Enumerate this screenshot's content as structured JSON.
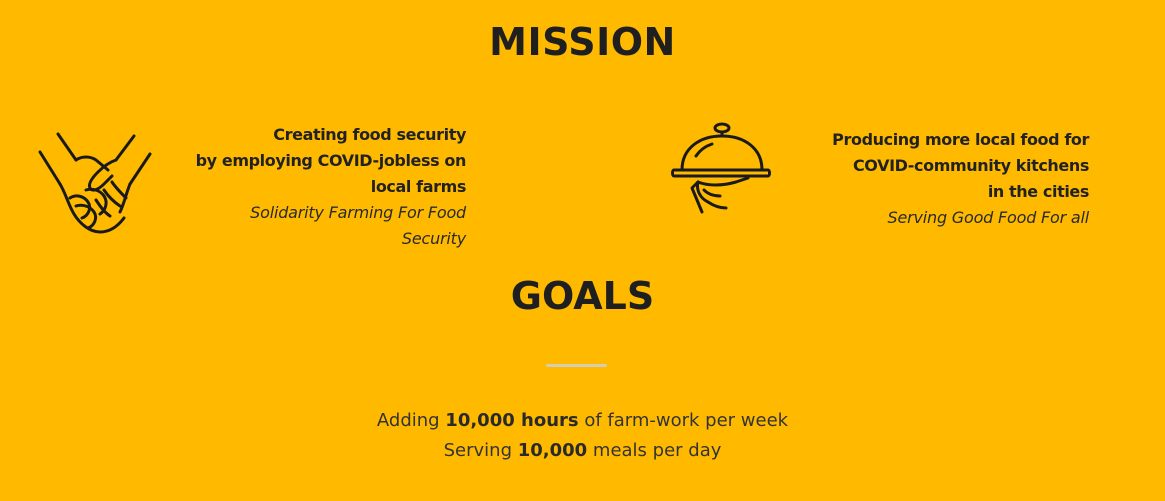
{
  "mission": {
    "title": "MISSION",
    "items": [
      {
        "icon": "handshake-icon",
        "lead_lines": [
          "Creating food security",
          "by employing COVID-jobless on",
          "local farms"
        ],
        "sub_lines": [
          "Solidarity Farming For Food",
          "Security"
        ]
      },
      {
        "icon": "cloche-icon",
        "lead_lines": [
          "Producing more local food for",
          "COVID-community kitchens",
          "in the cities"
        ],
        "sub_lines": [
          "Serving Good Food For all"
        ]
      }
    ]
  },
  "goals": {
    "title": "GOALS",
    "lines": [
      {
        "prefix": "Adding ",
        "highlight": "10,000 hours",
        "suffix": " of farm-work per week"
      },
      {
        "prefix": "Serving ",
        "highlight": "10,000",
        "suffix": " meals per day"
      }
    ]
  },
  "colors": {
    "background": "#FFBA00",
    "text": "#222222",
    "divider": "#D6CDB5"
  }
}
